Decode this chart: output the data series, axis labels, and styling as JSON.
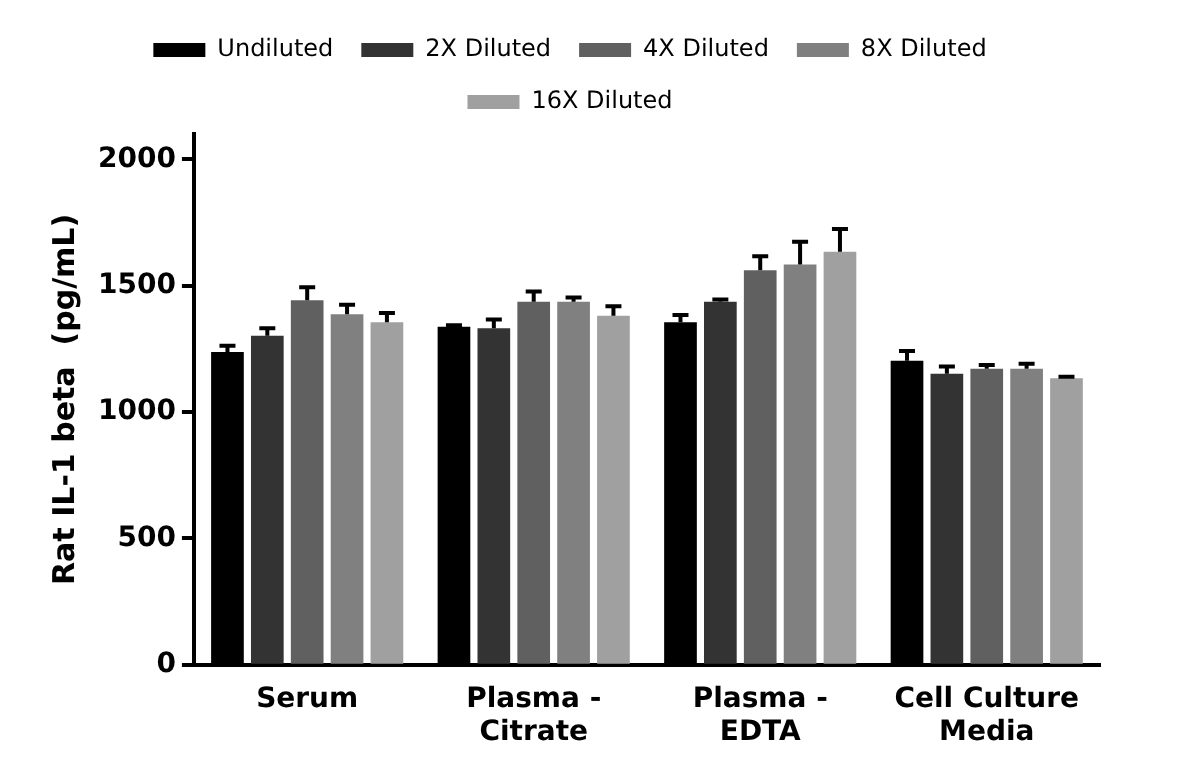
{
  "chart_data": {
    "type": "bar",
    "ylabel": "Rat IL-1 beta  (pg/mL)",
    "categories": [
      "Serum",
      "Plasma -\nCitrate",
      "Plasma -\nEDTA",
      "Cell Culture\nMedia"
    ],
    "series": [
      {
        "name": "Undiluted",
        "color": "#000000",
        "values": [
          1238,
          1337,
          1355,
          1203
        ],
        "errors": [
          [
            1238,
            1262
          ],
          [
            1337,
            1343
          ],
          [
            1355,
            1384
          ],
          [
            1203,
            1241
          ]
        ]
      },
      {
        "name": "2X Diluted",
        "color": "#333333",
        "values": [
          1302,
          1331,
          1436,
          1151
        ],
        "errors": [
          [
            1302,
            1331
          ],
          [
            1331,
            1366
          ],
          [
            1436,
            1445
          ],
          [
            1151,
            1180
          ]
        ]
      },
      {
        "name": "4X Diluted",
        "color": "#606060",
        "values": [
          1442,
          1436,
          1561,
          1171
        ],
        "errors": [
          [
            1442,
            1494
          ],
          [
            1436,
            1477
          ],
          [
            1561,
            1616
          ],
          [
            1171,
            1186
          ]
        ]
      },
      {
        "name": "8X Diluted",
        "color": "#808080",
        "values": [
          1387,
          1436,
          1584,
          1171
        ],
        "errors": [
          [
            1387,
            1424
          ],
          [
            1436,
            1453
          ],
          [
            1584,
            1674
          ],
          [
            1171,
            1191
          ]
        ]
      },
      {
        "name": "16X Diluted",
        "color": "#a0a0a0",
        "values": [
          1355,
          1381,
          1634,
          1134
        ],
        "errors": [
          [
            1355,
            1392
          ],
          [
            1381,
            1419
          ],
          [
            1634,
            1724
          ],
          [
            1134,
            1140
          ]
        ]
      }
    ],
    "ylim": [
      0,
      2100
    ],
    "yticks": [
      0,
      500,
      1000,
      1500,
      2000
    ],
    "grid": false,
    "legend": "top"
  }
}
